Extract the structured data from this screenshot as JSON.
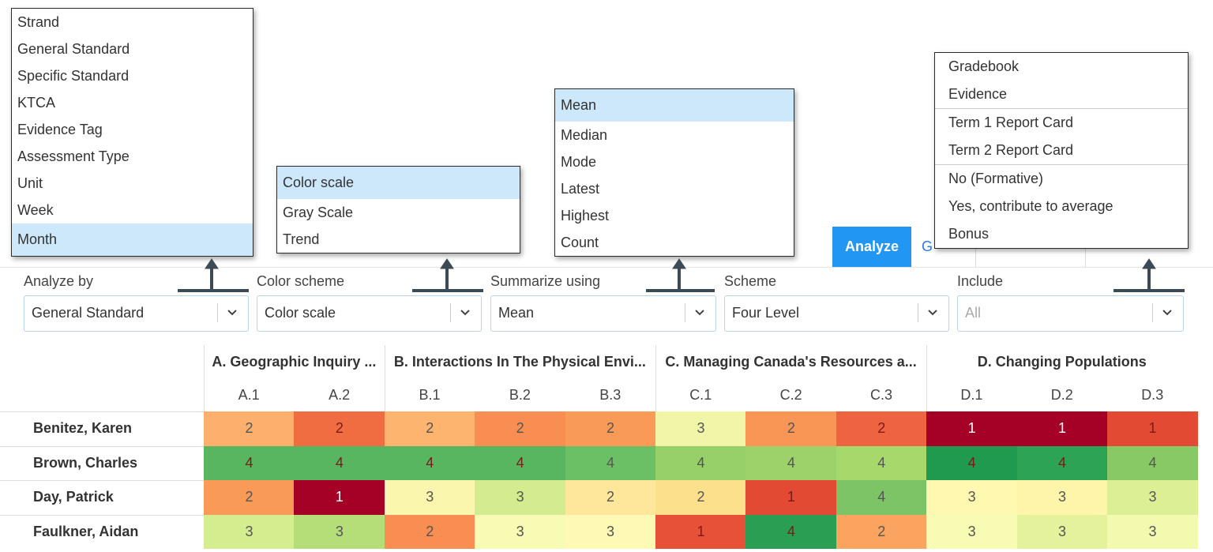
{
  "menus": {
    "analyze_by": {
      "items": [
        "Strand",
        "General Standard",
        "Specific Standard",
        "KTCA",
        "Evidence Tag",
        "Assessment Type",
        "Unit",
        "Week",
        "Month"
      ],
      "highlight": 8
    },
    "color_scheme": {
      "items": [
        "Color scale",
        "Gray Scale",
        "Trend"
      ],
      "highlight": 0
    },
    "summarize": {
      "items": [
        "Mean",
        "Median",
        "Mode",
        "Latest",
        "Highest",
        "Count"
      ],
      "highlight": 0
    },
    "include": {
      "sections": [
        [
          "Gradebook",
          "Evidence"
        ],
        [
          "Term 1 Report Card",
          "Term 2 Report Card"
        ],
        [
          "No (Formative)",
          "Yes, contribute to average",
          "Bonus"
        ]
      ]
    }
  },
  "tabs": {
    "active": "Analyze",
    "next": "G"
  },
  "filters": [
    {
      "label": "Analyze by",
      "value": "General Standard"
    },
    {
      "label": "Color scheme",
      "value": "Color scale"
    },
    {
      "label": "Summarize using",
      "value": "Mean"
    },
    {
      "label": "Scheme",
      "value": "Four Level"
    },
    {
      "label": "Include",
      "value": "All"
    }
  ],
  "table": {
    "groups": [
      {
        "title": "A. Geographic Inquiry ...",
        "columns": [
          "A.1",
          "A.2"
        ]
      },
      {
        "title": "B. Interactions In The Physical Envi...",
        "columns": [
          "B.1",
          "B.2",
          "B.3"
        ]
      },
      {
        "title": "C. Managing Canada's Resources a...",
        "columns": [
          "C.1",
          "C.2",
          "C.3"
        ]
      },
      {
        "title": "D. Changing Populations",
        "columns": [
          "D.1",
          "D.2",
          "D.3"
        ]
      }
    ],
    "rows": [
      {
        "name": "Benitez, Karen",
        "values": [
          2,
          2,
          2,
          2,
          2,
          3,
          2,
          2,
          1,
          1,
          1
        ],
        "colors": [
          "#fdb06e",
          "#f06d42",
          "#fdb46f",
          "#f98e52",
          "#f99a57",
          "#f0f5a8",
          "#f99655",
          "#ee6340",
          "#a50026",
          "#a50026",
          "#e34a33"
        ]
      },
      {
        "name": "Brown, Charles",
        "values": [
          4,
          4,
          4,
          4,
          4,
          4,
          4,
          4,
          4,
          4,
          4
        ],
        "colors": [
          "#57b65f",
          "#57b65f",
          "#57b65f",
          "#57b65f",
          "#6bbf64",
          "#97d068",
          "#9dd26a",
          "#a6d86c",
          "#1f9a4f",
          "#2da355",
          "#88c965"
        ]
      },
      {
        "name": "Day, Patrick",
        "values": [
          2,
          1,
          3,
          3,
          2,
          2,
          1,
          4,
          3,
          3,
          3
        ],
        "colors": [
          "#f99a56",
          "#a50026",
          "#fbf6ad",
          "#d3ec8f",
          "#fee79a",
          "#fde08b",
          "#e24a33",
          "#7cc465",
          "#fef8b0",
          "#fef5ab",
          "#dcef95"
        ]
      },
      {
        "name": "Faulkner, Aidan",
        "values": [
          3,
          3,
          2,
          3,
          3,
          1,
          4,
          2,
          3,
          3,
          3
        ],
        "colors": [
          "#d4ed8e",
          "#b5de78",
          "#f98e52",
          "#f8fbb4",
          "#fefab6",
          "#e65138",
          "#2a9f53",
          "#fba45f",
          "#f7fbb3",
          "#e4f29c",
          "#f3f9ae"
        ]
      }
    ]
  }
}
